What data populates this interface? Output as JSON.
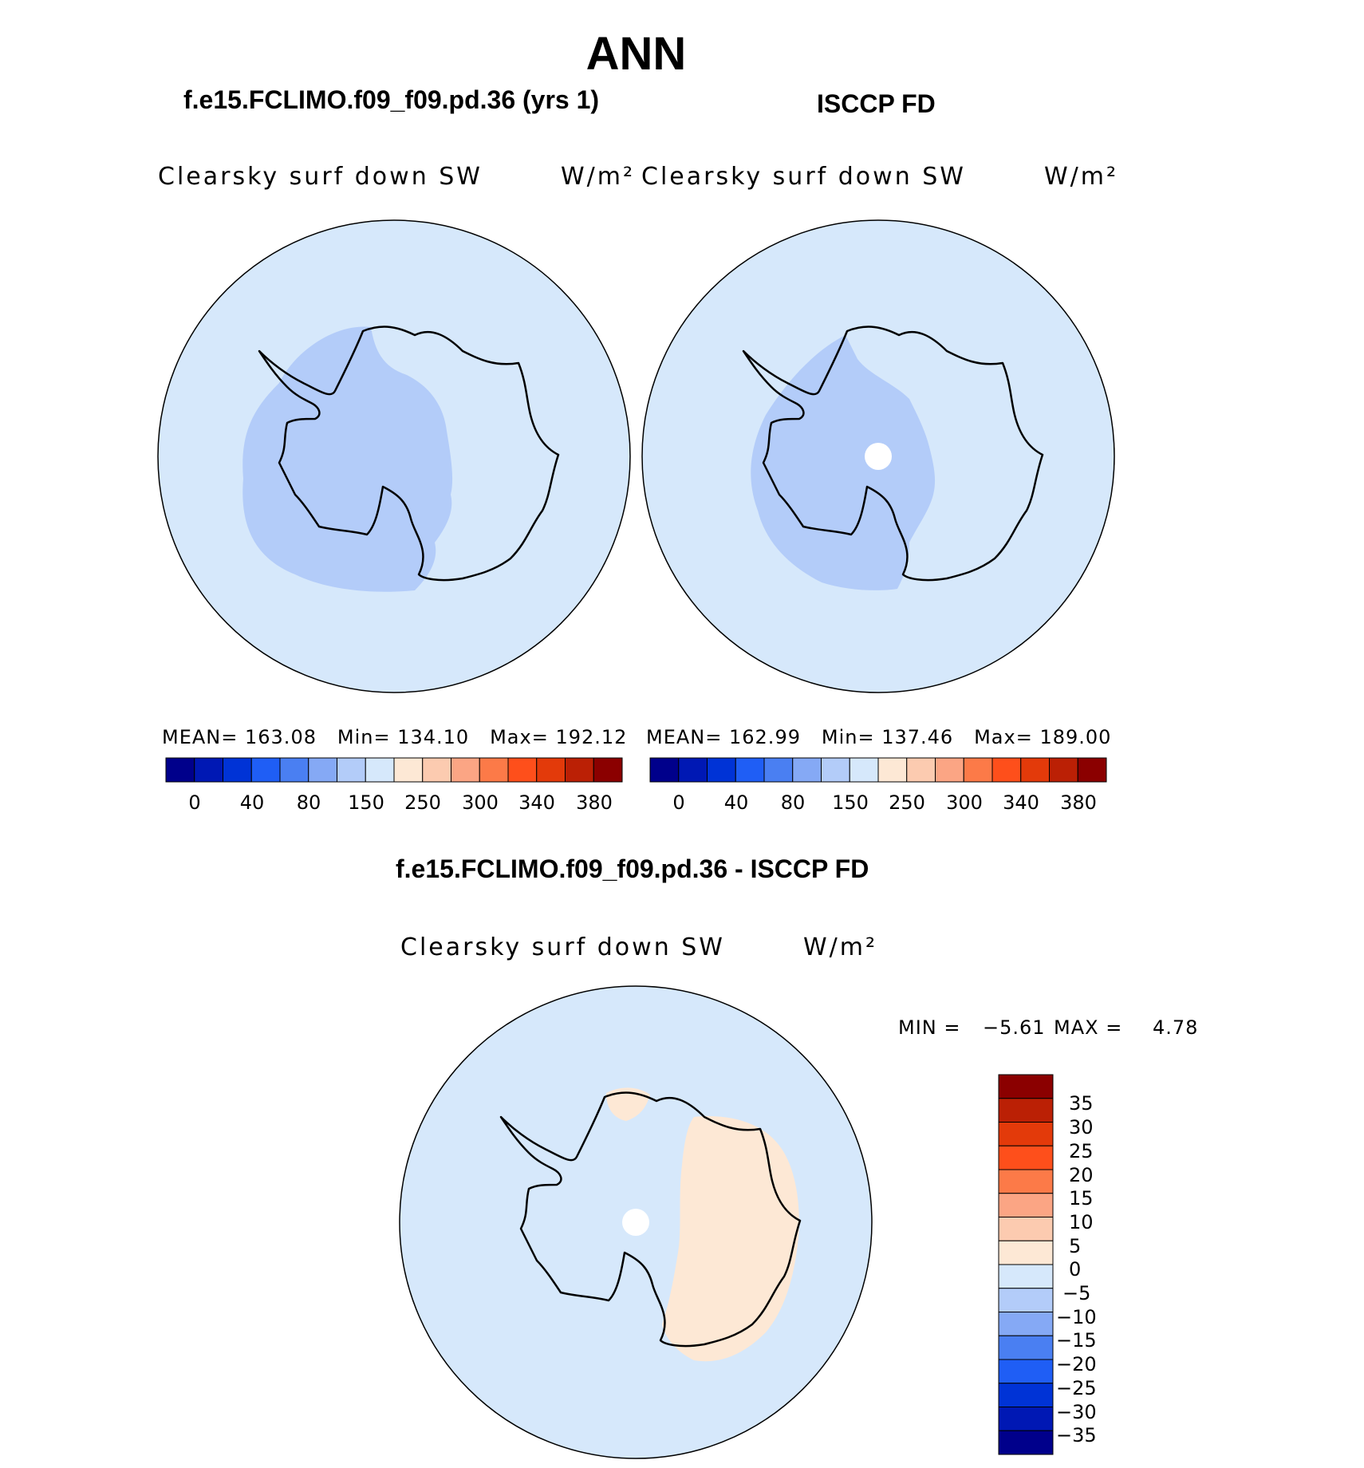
{
  "title": "ANN",
  "panels": [
    {
      "case_title": "f.e15.FCLIMO.f09_f09.pd.36 (yrs 1)",
      "variable": "Clearsky surf down SW",
      "units": "W/m²",
      "stats": {
        "mean_label": "MEAN=",
        "mean": "163.08",
        "min_label": "Min=",
        "min": "134.10",
        "max_label": "Max=",
        "max": "192.12"
      }
    },
    {
      "case_title": "ISCCP FD",
      "variable": "Clearsky surf down SW",
      "units": "W/m²",
      "stats": {
        "mean_label": "MEAN=",
        "mean": "162.99",
        "min_label": "Min=",
        "min": "137.46",
        "max_label": "Max=",
        "max": "189.00"
      }
    }
  ],
  "abs_colorbar": {
    "colors": [
      "#00008b",
      "#0018b4",
      "#0033d6",
      "#1f5ef5",
      "#4a7ff2",
      "#85a9f5",
      "#b3ccf9",
      "#d6e8fb",
      "#fde8d5",
      "#fccbb0",
      "#fba584",
      "#fc7a48",
      "#fe4f1b",
      "#e33a0a",
      "#bb2005",
      "#8b0000"
    ],
    "tick_labels": [
      "0",
      "40",
      "80",
      "150",
      "250",
      "300",
      "340",
      "380"
    ]
  },
  "diff_panel": {
    "case_title": "f.e15.FCLIMO.f09_f09.pd.36 - ISCCP FD",
    "variable": "Clearsky surf down SW",
    "units": "W/m²",
    "min_label": "MIN =",
    "min": "−5.61",
    "max_label": "MAX =",
    "max": "4.78"
  },
  "diff_colorbar": {
    "colors_top_to_bottom": [
      "#8b0000",
      "#bb2005",
      "#e33a0a",
      "#fe4f1b",
      "#fc7a48",
      "#fba584",
      "#fccbb0",
      "#fde8d5",
      "#d6e8fb",
      "#b3ccf9",
      "#85a9f5",
      "#4a7ff2",
      "#1f5ef5",
      "#0033d6",
      "#0018b4",
      "#00008b"
    ],
    "tick_labels": [
      "35",
      "30",
      "25",
      "20",
      "15",
      "10",
      "5",
      "0",
      "−5",
      "−10",
      "−15",
      "−20",
      "−25",
      "−30",
      "−35"
    ]
  },
  "map_colors": {
    "ocean": "#d6e8fb",
    "low": "#b3ccf9",
    "diff_positive": "#fde8d5",
    "missing": "#ffffff",
    "coast": "#000000"
  }
}
